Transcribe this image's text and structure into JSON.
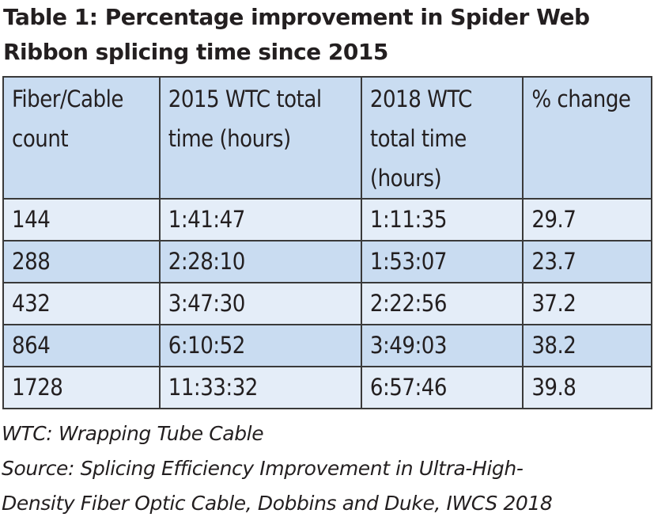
{
  "title": {
    "line1": "Table 1: Percentage improvement in Spider Web",
    "line2": "Ribbon splicing time since 2015"
  },
  "table": {
    "headers": {
      "col1_line1": "Fiber/Cable",
      "col1_line2": "count",
      "col2_line1": "2015 WTC total",
      "col2_line2": "time (hours)",
      "col3_line1": "2018 WTC",
      "col3_line2": "total time",
      "col3_line3": "(hours)",
      "col4_line1": "% change"
    },
    "rows": [
      {
        "count": "144",
        "t2015": "1:41:47",
        "t2018": "1:11:35",
        "change": "29.7"
      },
      {
        "count": "288",
        "t2015": "2:28:10",
        "t2018": "1:53:07",
        "change": "23.7"
      },
      {
        "count": "432",
        "t2015": "3:47:30",
        "t2018": "2:22:56",
        "change": "37.2"
      },
      {
        "count": "864",
        "t2015": "6:10:52",
        "t2018": "3:49:03",
        "change": "38.2"
      },
      {
        "count": "1728",
        "t2015": "11:33:32",
        "t2018": "6:57:46",
        "change": "39.8"
      }
    ]
  },
  "notes": {
    "line1": "WTC: Wrapping Tube Cable",
    "line2": "Source: Splicing Efficiency Improvement in Ultra-High-",
    "line3": "Density Fiber Optic Cable, Dobbins and Duke, IWCS 2018"
  }
}
